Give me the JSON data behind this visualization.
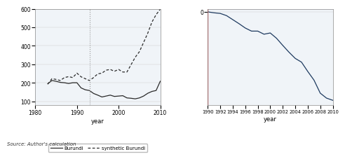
{
  "left": {
    "years_burundi": [
      1983,
      1984,
      1985,
      1986,
      1987,
      1988,
      1989,
      1990,
      1991,
      1992,
      1993,
      1994,
      1995,
      1996,
      1997,
      1998,
      1999,
      2000,
      2001,
      2002,
      2003,
      2004,
      2005,
      2006,
      2007,
      2008,
      2009,
      2010
    ],
    "gdp_burundi": [
      195,
      212,
      208,
      202,
      200,
      196,
      200,
      200,
      172,
      162,
      158,
      142,
      133,
      123,
      128,
      133,
      126,
      128,
      130,
      118,
      116,
      113,
      118,
      128,
      143,
      153,
      158,
      208
    ],
    "years_synthetic": [
      1983,
      1984,
      1985,
      1986,
      1987,
      1988,
      1989,
      1990,
      1991,
      1992,
      1993,
      1994,
      1995,
      1996,
      1997,
      1998,
      1999,
      2000,
      2001,
      2002,
      2003,
      2004,
      2005,
      2006,
      2007,
      2008,
      2009,
      2010
    ],
    "gdp_synthetic": [
      192,
      222,
      218,
      212,
      228,
      233,
      228,
      252,
      232,
      222,
      212,
      228,
      248,
      252,
      268,
      272,
      262,
      272,
      258,
      258,
      298,
      338,
      368,
      418,
      468,
      528,
      568,
      598
    ],
    "vline_x": 1993,
    "xlim": [
      1980,
      2010
    ],
    "ylim": [
      80,
      600
    ],
    "yticks": [
      100,
      200,
      300,
      400,
      500,
      600
    ],
    "xticks": [
      1980,
      1990,
      2000,
      2010
    ],
    "xlabel": "year",
    "legend_burundi": "Burundi",
    "legend_synthetic": "synthetic Burundi",
    "panel_bg": "#f0f4f8",
    "line_color": "#2a2a2a"
  },
  "right": {
    "years": [
      1990,
      1991,
      1992,
      1993,
      1994,
      1995,
      1996,
      1997,
      1998,
      1999,
      2000,
      2001,
      2002,
      2003,
      2004,
      2005,
      2006,
      2007,
      2008,
      2009,
      2010
    ],
    "gap": [
      0,
      -3,
      -5,
      -12,
      -25,
      -38,
      -52,
      -62,
      -62,
      -72,
      -68,
      -85,
      -108,
      -130,
      -150,
      -162,
      -192,
      -220,
      -262,
      -278,
      -285
    ],
    "vline_x": 1990,
    "xlim": [
      1990,
      2010
    ],
    "ylim": [
      -300,
      10
    ],
    "xticks": [
      1990,
      1992,
      1994,
      1996,
      1998,
      2000,
      2002,
      2004,
      2006,
      2008,
      2010
    ],
    "xlabel": "year",
    "line_color": "#1e3a5f",
    "vline_color": "#cc3333",
    "panel_bg": "#f0f4f8",
    "ytick_label": "0"
  },
  "fig_bg": "#ffffff",
  "source_text": "Source: Author's calculation"
}
